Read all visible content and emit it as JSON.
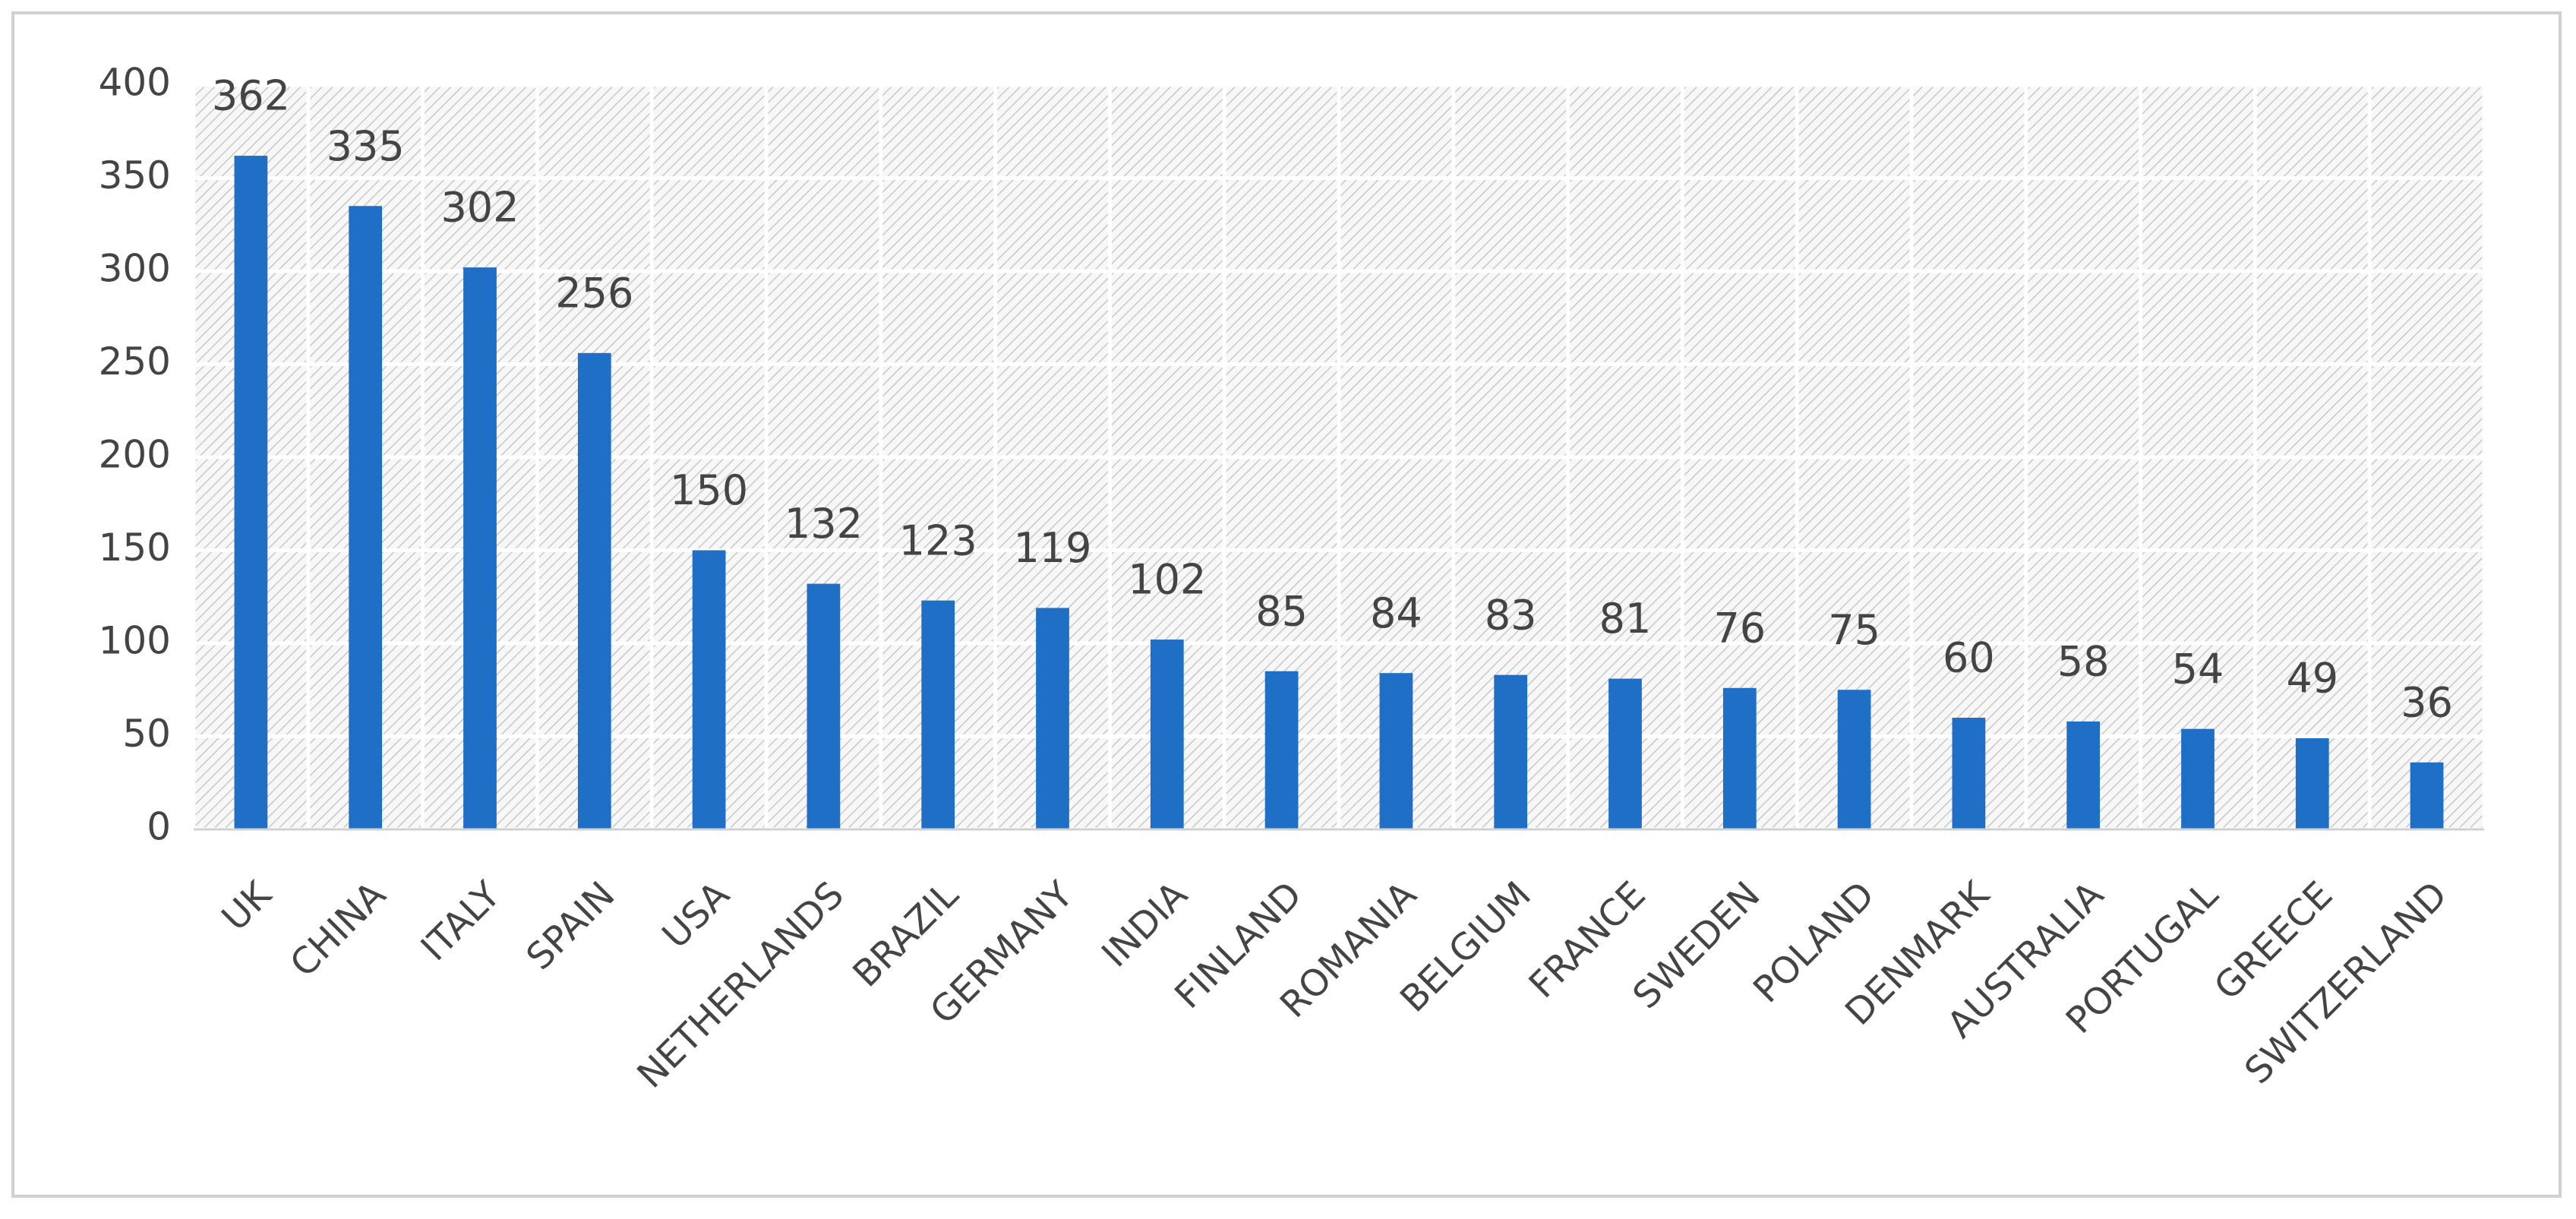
{
  "chart_data": {
    "type": "bar",
    "categories": [
      "UK",
      "CHINA",
      "ITALY",
      "SPAIN",
      "USA",
      "NETHERLANDS",
      "BRAZIL",
      "GERMANY",
      "INDIA",
      "FINLAND",
      "ROMANIA",
      "BELGIUM",
      "FRANCE",
      "SWEDEN",
      "POLAND",
      "DENMARK",
      "AUSTRALIA",
      "PORTUGAL",
      "GREECE",
      "SWITZERLAND"
    ],
    "values": [
      362,
      335,
      302,
      256,
      150,
      132,
      123,
      119,
      102,
      85,
      84,
      83,
      81,
      76,
      75,
      60,
      58,
      54,
      49,
      36
    ],
    "color": "#1f6fc6",
    "ylim": [
      0,
      400
    ],
    "yticks": [
      0,
      50,
      100,
      150,
      200,
      250,
      300,
      350,
      400
    ],
    "grid": true
  }
}
